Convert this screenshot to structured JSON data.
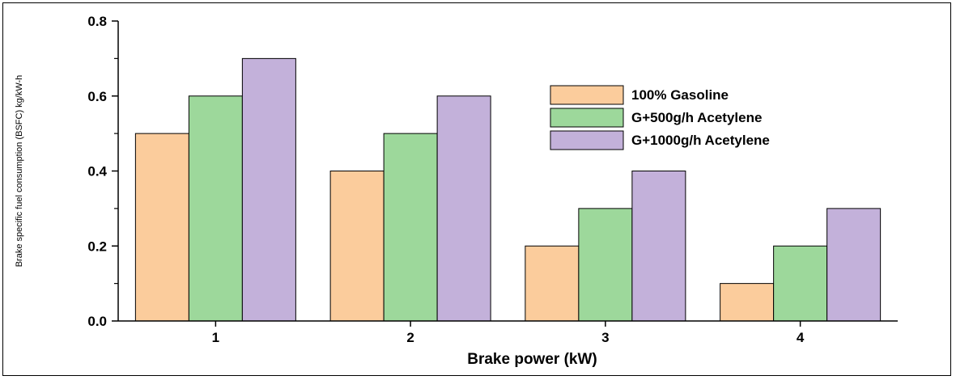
{
  "chart_data": {
    "type": "bar",
    "categories": [
      "1",
      "2",
      "3",
      "4"
    ],
    "series": [
      {
        "name": "100% Gasoline",
        "color": "#fbcc9c",
        "values": [
          0.5,
          0.4,
          0.2,
          0.1
        ]
      },
      {
        "name": "G+500g/h Acetylene",
        "color": "#9dd89b",
        "values": [
          0.6,
          0.5,
          0.3,
          0.2
        ]
      },
      {
        "name": "G+1000g/h Acetylene",
        "color": "#c3b1da",
        "values": [
          0.7,
          0.6,
          0.4,
          0.3
        ]
      }
    ],
    "xlabel": "Brake power (kW)",
    "ylabel": "Brake specific fuel consumption (BSFC) kg/kW-h",
    "ylim": [
      0,
      0.8
    ],
    "yticks": [
      "0.0",
      "0.2",
      "0.4",
      "0.6",
      "0.8"
    ],
    "grid": false,
    "legend_position": "top-right"
  }
}
